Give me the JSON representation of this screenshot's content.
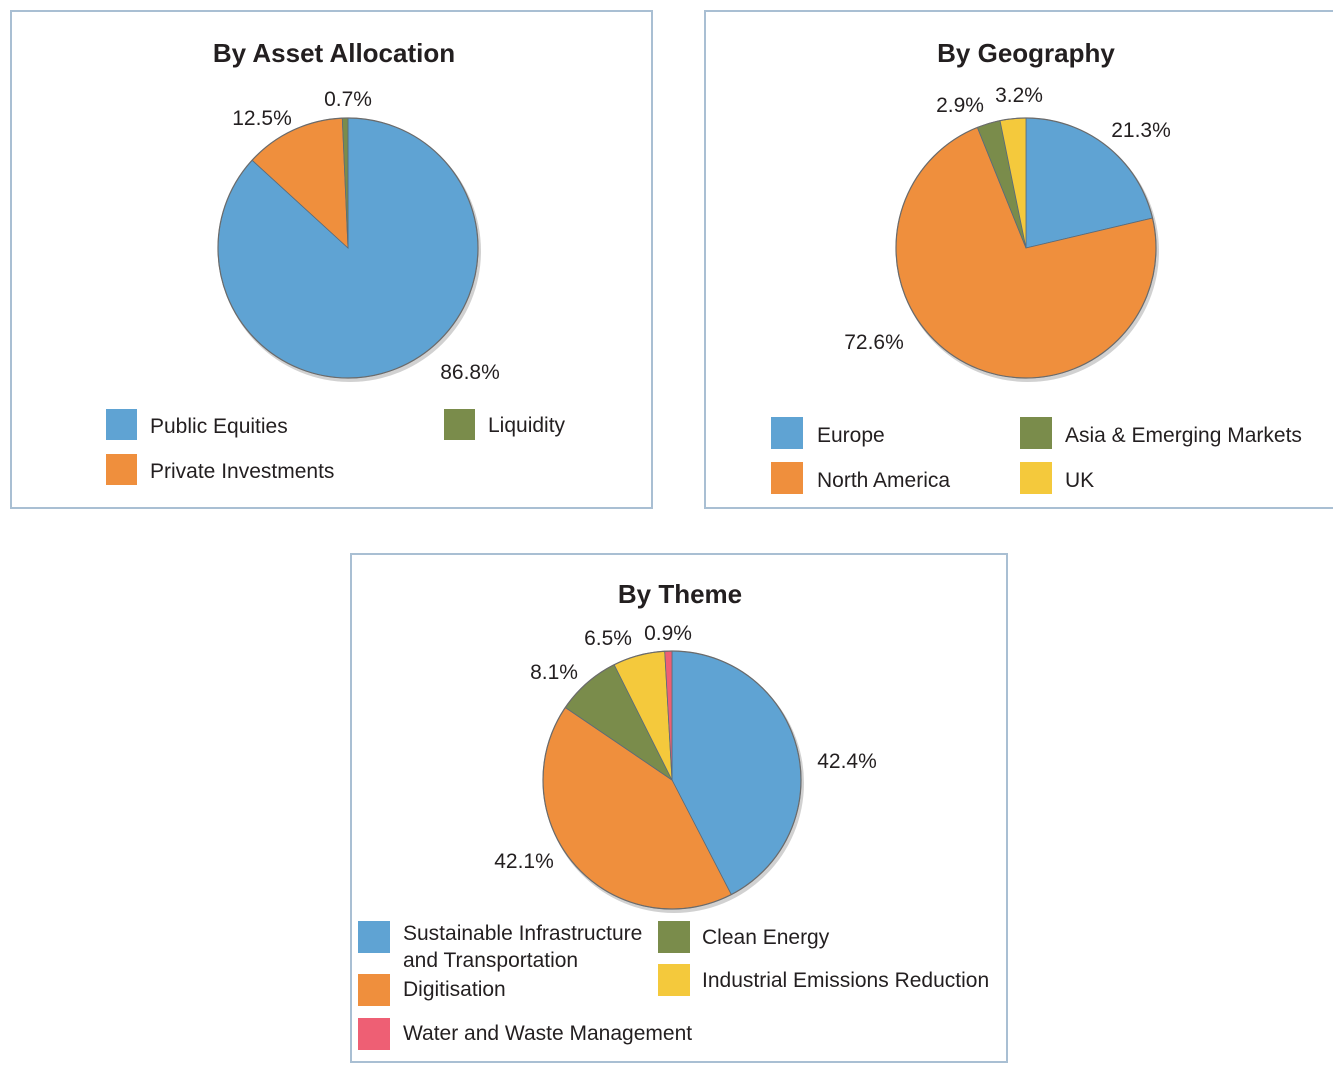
{
  "chart_data": [
    {
      "type": "pie",
      "title": "By Asset Allocation",
      "slices": [
        {
          "label": "Public Equities",
          "value": 86.8,
          "display": "86.8%",
          "color": "#5fa3d3"
        },
        {
          "label": "Private Investments",
          "value": 12.5,
          "display": "12.5%",
          "color": "#ef8f3d"
        },
        {
          "label": "Liquidity",
          "value": 0.7,
          "display": "0.7%",
          "color": "#7a8c4b"
        }
      ],
      "legend_placement": "bottom"
    },
    {
      "type": "pie",
      "title": "By Geography",
      "slices": [
        {
          "label": "Europe",
          "value": 21.3,
          "display": "21.3%",
          "color": "#5fa3d3"
        },
        {
          "label": "North America",
          "value": 72.6,
          "display": "72.6%",
          "color": "#ef8f3d"
        },
        {
          "label": "Asia & Emerging Markets",
          "value": 2.9,
          "display": "2.9%",
          "color": "#7a8c4b"
        },
        {
          "label": "UK",
          "value": 3.2,
          "display": "3.2%",
          "color": "#f4c93c"
        }
      ],
      "legend_placement": "bottom"
    },
    {
      "type": "pie",
      "title": "By Theme",
      "slices": [
        {
          "label": "Sustainable Infrastructure and Transportation",
          "value": 42.4,
          "display": "42.4%",
          "color": "#5fa3d3"
        },
        {
          "label": "Digitisation",
          "value": 42.1,
          "display": "42.1%",
          "color": "#ef8f3d"
        },
        {
          "label": "Clean Energy",
          "value": 8.1,
          "display": "8.1%",
          "color": "#7a8c4b"
        },
        {
          "label": "Industrial Emissions Reduction",
          "value": 6.5,
          "display": "6.5%",
          "color": "#f4c93c"
        },
        {
          "label": "Water and Waste Management",
          "value": 0.9,
          "display": "0.9%",
          "color": "#ee5f74"
        }
      ],
      "legend_placement": "bottom"
    }
  ]
}
